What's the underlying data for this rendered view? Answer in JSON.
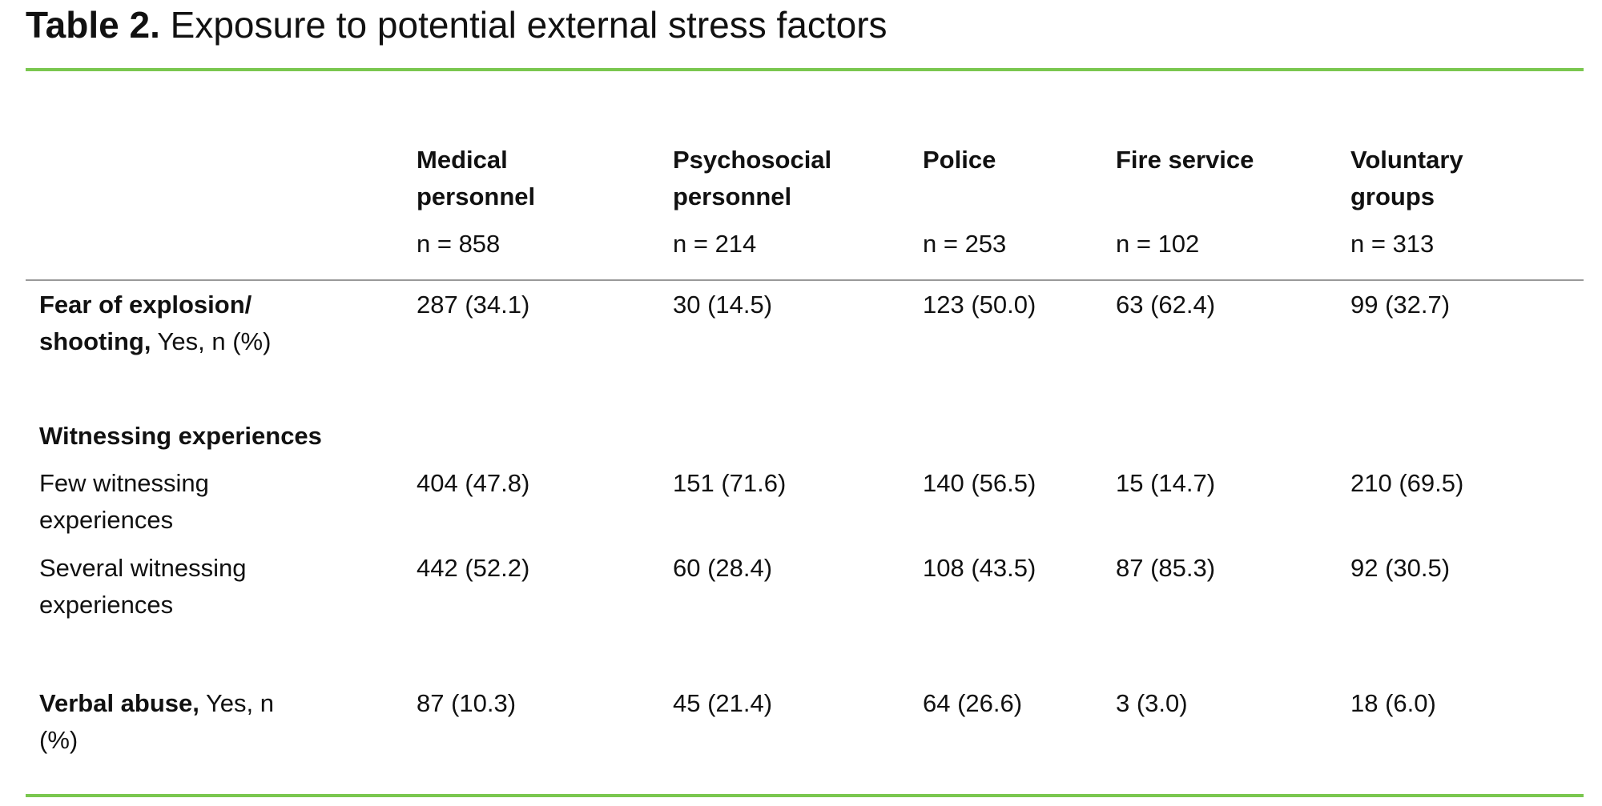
{
  "title": {
    "label": "Table 2.",
    "text": "Exposure to potential external stress factors"
  },
  "columns": [
    {
      "name": "Medical personnel",
      "n": "n = 858"
    },
    {
      "name": "Psychosocial personnel",
      "n": "n = 214"
    },
    {
      "name": "Police",
      "n": "n = 253"
    },
    {
      "name": "Fire service",
      "n": "n = 102"
    },
    {
      "name": "Voluntary groups",
      "n": "n = 313"
    }
  ],
  "rows": [
    {
      "label_bold": "Fear of explosion/ shooting,",
      "label": "Yes, n (%)",
      "cells": [
        "287 (34.1)",
        "30 (14.5)",
        "123 (50.0)",
        "63 (62.4)",
        "99 (32.7)"
      ]
    },
    {
      "section": "Witnessing experiences"
    },
    {
      "label": "Few witnessing experiences",
      "cells": [
        "404 (47.8)",
        "151 (71.6)",
        "140 (56.5)",
        "15 (14.7)",
        "210 (69.5)"
      ]
    },
    {
      "label": "Several witnessing experiences",
      "cells": [
        "442 (52.2)",
        "60 (28.4)",
        "108 (43.5)",
        "87 (85.3)",
        "92 (30.5)"
      ]
    },
    {
      "label_bold": "Verbal abuse,",
      "label": "Yes, n (%)",
      "cells": [
        "87 (10.3)",
        "45 (21.4)",
        "64 (26.6)",
        "3 (3.0)",
        "18 (6.0)"
      ]
    }
  ]
}
